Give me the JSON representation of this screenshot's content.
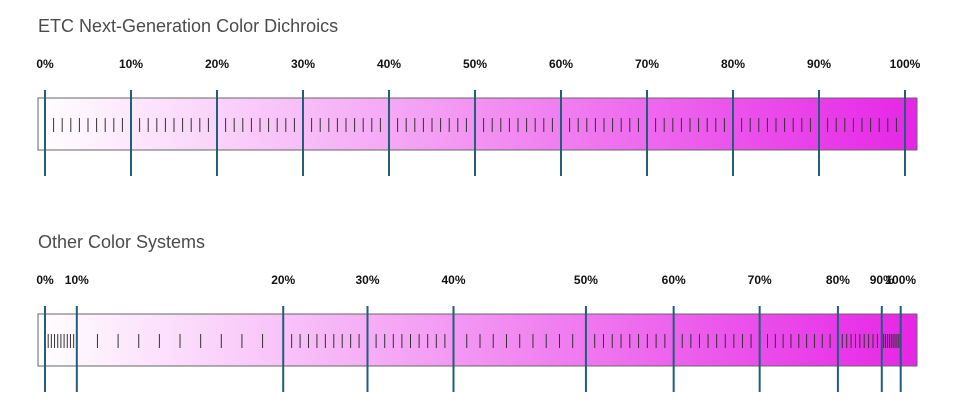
{
  "sections": [
    {
      "title": "ETC Next-Generation Color Dichroics",
      "markers": [
        {
          "label": "0%",
          "value": 0
        },
        {
          "label": "10%",
          "value": 10
        },
        {
          "label": "20%",
          "value": 20
        },
        {
          "label": "30%",
          "value": 30
        },
        {
          "label": "40%",
          "value": 40
        },
        {
          "label": "50%",
          "value": 50
        },
        {
          "label": "60%",
          "value": 60
        },
        {
          "label": "70%",
          "value": 70
        },
        {
          "label": "80%",
          "value": 80
        },
        {
          "label": "90%",
          "value": 90
        },
        {
          "label": "100%",
          "value": 100
        }
      ],
      "marker_positions": [
        0,
        10,
        20,
        30,
        40,
        50,
        60,
        70,
        80,
        90,
        100
      ],
      "minor_ticks_per_interval": 9
    },
    {
      "title": "Other Color Systems",
      "markers": [
        {
          "label": "0%",
          "value": 0
        },
        {
          "label": "10%",
          "value": 10
        },
        {
          "label": "20%",
          "value": 20
        },
        {
          "label": "30%",
          "value": 30
        },
        {
          "label": "40%",
          "value": 40
        },
        {
          "label": "50%",
          "value": 50
        },
        {
          "label": "60%",
          "value": 60
        },
        {
          "label": "70%",
          "value": 70
        },
        {
          "label": "80%",
          "value": 80
        },
        {
          "label": "90%",
          "value": 90
        },
        {
          "label": "100%",
          "value": 100
        }
      ],
      "marker_positions": [
        0,
        3.7,
        27.7,
        37.5,
        47.5,
        62.9,
        73.1,
        83.1,
        92.2,
        97.3,
        99.5
      ],
      "minor_ticks_per_interval": 9
    }
  ],
  "colors": {
    "gradient_start": "#ffffff",
    "gradient_end": "#e626e6",
    "marker_line": "#1f5f7a",
    "minor_tick": "#333333",
    "bar_border": "#666666",
    "title_text": "#4b4b4b",
    "label_text": "#111111"
  }
}
